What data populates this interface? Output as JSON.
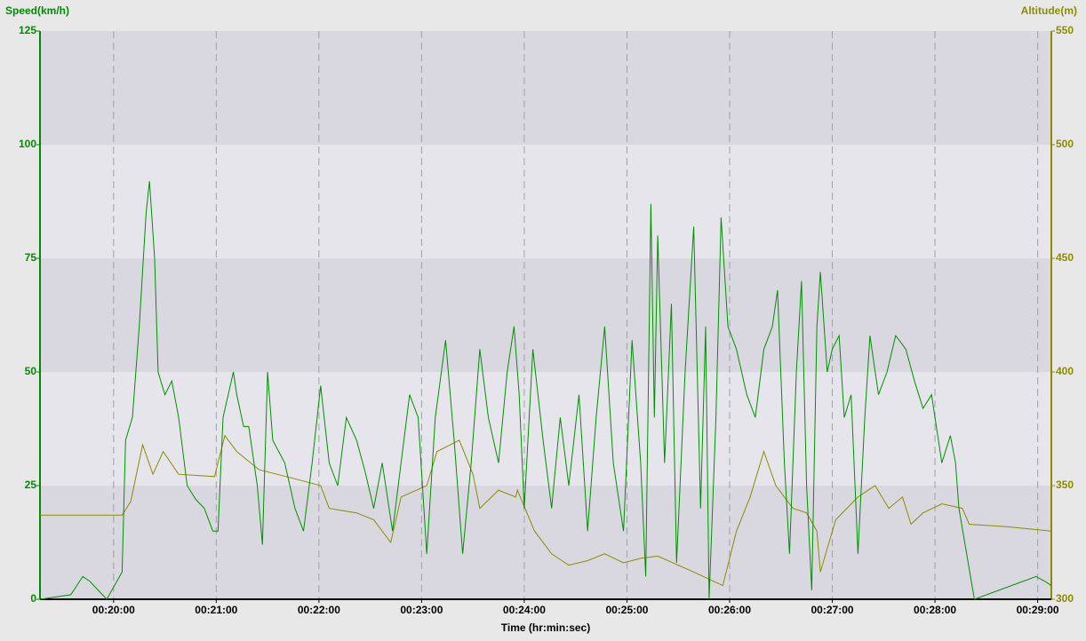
{
  "chart_data": {
    "type": "line",
    "y_label": "Speed(km/h)",
    "y2_label": "Altitude(m)",
    "x_label": "Time (hr:min:sec)",
    "xlim": [
      1157,
      1748
    ],
    "ylim": [
      0,
      125
    ],
    "y2lim": [
      300,
      550
    ],
    "xticks": [
      {
        "value": 1200,
        "label": "00:20:00"
      },
      {
        "value": 1260,
        "label": "00:21:00"
      },
      {
        "value": 1320,
        "label": "00:22:00"
      },
      {
        "value": 1380,
        "label": "00:23:00"
      },
      {
        "value": 1440,
        "label": "00:24:00"
      },
      {
        "value": 1500,
        "label": "00:25:00"
      },
      {
        "value": 1560,
        "label": "00:26:00"
      },
      {
        "value": 1620,
        "label": "00:27:00"
      },
      {
        "value": 1680,
        "label": "00:28:00"
      },
      {
        "value": 1740,
        "label": "00:29:00"
      }
    ],
    "yticks": [
      0,
      25,
      50,
      75,
      100,
      125
    ],
    "y2ticks": [
      300,
      350,
      400,
      450,
      500,
      550
    ],
    "grid": true,
    "y_color": "#008c00",
    "y2_color": "#8c8c00",
    "series": [
      {
        "name": "Speed",
        "color": "#009000",
        "x": [
          1157,
          1175,
          1182,
          1186,
          1196,
          1205,
          1207,
          1211,
          1215,
          1219,
          1221,
          1224,
          1226,
          1230,
          1234,
          1238,
          1243,
          1248,
          1253,
          1258,
          1261,
          1264,
          1270,
          1272,
          1276,
          1279,
          1284,
          1287,
          1290,
          1293,
          1300,
          1306,
          1311,
          1316,
          1321,
          1326,
          1331,
          1336,
          1342,
          1347,
          1352,
          1357,
          1363,
          1368,
          1373,
          1378,
          1383,
          1388,
          1394,
          1399,
          1404,
          1409,
          1414,
          1419,
          1425,
          1430,
          1434,
          1437,
          1440,
          1445,
          1451,
          1456,
          1461,
          1466,
          1472,
          1477,
          1482,
          1487,
          1492,
          1498,
          1503,
          1508,
          1511,
          1514,
          1516,
          1518,
          1522,
          1526,
          1529,
          1534,
          1539,
          1543,
          1546,
          1548,
          1552,
          1555,
          1559,
          1564,
          1570,
          1575,
          1580,
          1585,
          1588,
          1592,
          1595,
          1599,
          1602,
          1605,
          1608,
          1611,
          1613,
          1617,
          1620,
          1624,
          1627,
          1631,
          1635,
          1639,
          1642,
          1647,
          1652,
          1657,
          1663,
          1668,
          1673,
          1678,
          1684,
          1689,
          1692,
          1694,
          1703,
          1739,
          1744,
          1748
        ],
        "values": [
          0,
          1,
          5,
          4,
          0,
          6,
          35,
          40,
          60,
          85,
          92,
          75,
          50,
          45,
          48,
          40,
          25,
          22,
          20,
          15,
          15,
          40,
          50,
          45,
          38,
          38,
          25,
          12,
          50,
          35,
          30,
          20,
          15,
          30,
          47,
          30,
          25,
          40,
          35,
          28,
          20,
          30,
          15,
          30,
          45,
          40,
          10,
          40,
          57,
          35,
          10,
          30,
          55,
          40,
          30,
          50,
          60,
          45,
          20,
          55,
          35,
          20,
          40,
          25,
          45,
          15,
          40,
          60,
          30,
          15,
          57,
          30,
          5,
          87,
          40,
          80,
          30,
          65,
          8,
          50,
          82,
          20,
          60,
          0,
          40,
          84,
          60,
          55,
          45,
          40,
          55,
          60,
          68,
          30,
          10,
          50,
          70,
          25,
          2,
          60,
          72,
          50,
          55,
          58,
          40,
          45,
          10,
          40,
          58,
          45,
          50,
          58,
          55,
          48,
          42,
          45,
          30,
          36,
          30,
          20,
          0,
          5,
          4,
          3
        ]
      },
      {
        "name": "Altitude",
        "color": "#8c8c00",
        "axis": "y2",
        "x": [
          1157,
          1205,
          1210,
          1217,
          1223,
          1229,
          1238,
          1259,
          1265,
          1272,
          1285,
          1306,
          1321,
          1326,
          1342,
          1352,
          1362,
          1368,
          1383,
          1389,
          1402,
          1410,
          1414,
          1425,
          1435,
          1436,
          1446,
          1456,
          1466,
          1477,
          1487,
          1498,
          1508,
          1518,
          1539,
          1556,
          1564,
          1572,
          1580,
          1587,
          1597,
          1605,
          1611,
          1613,
          1622,
          1635,
          1645,
          1653,
          1661,
          1666,
          1673,
          1684,
          1696,
          1700,
          1721,
          1748
        ],
        "values": [
          337,
          337,
          343,
          368,
          355,
          365,
          355,
          354,
          372,
          365,
          357,
          353,
          350,
          340,
          338,
          335,
          325,
          345,
          350,
          365,
          370,
          355,
          340,
          348,
          345,
          348,
          330,
          320,
          315,
          317,
          320,
          316,
          318,
          319,
          312,
          306,
          330,
          345,
          365,
          350,
          340,
          338,
          330,
          312,
          335,
          345,
          350,
          340,
          345,
          333,
          338,
          342,
          340,
          333,
          332,
          330
        ]
      }
    ]
  }
}
